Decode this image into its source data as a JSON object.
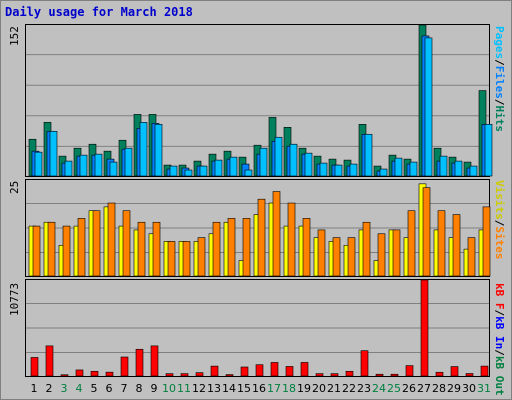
{
  "title": "Daily usage for March 2018",
  "colors": {
    "hits": "#00805c",
    "files": "#0080ff",
    "pages": "#00c0ff",
    "sites": "#ff8000",
    "visits": "#ffff00",
    "kbin": "#0000ff",
    "kbout": "#008040",
    "kbf": "#ff0000",
    "weekend": "#008040"
  },
  "legends": {
    "top": [
      {
        "text": "Pages",
        "color": "#00c0ff"
      },
      {
        "text": "/",
        "color": "#000000"
      },
      {
        "text": "Files",
        "color": "#0080ff"
      },
      {
        "text": "/",
        "color": "#000000"
      },
      {
        "text": "Hits",
        "color": "#00805c"
      }
    ],
    "middle": [
      {
        "text": "Visits",
        "color": "#cccc00"
      },
      {
        "text": "/",
        "color": "#000000"
      },
      {
        "text": "Sites",
        "color": "#ff8000"
      }
    ],
    "bottom": [
      {
        "text": "kB F",
        "color": "#ff0000"
      },
      {
        "text": "/",
        "color": "#000000"
      },
      {
        "text": "kB In",
        "color": "#0000ff"
      },
      {
        "text": "/",
        "color": "#000000"
      },
      {
        "text": "kB Out",
        "color": "#008040"
      }
    ]
  },
  "chart_data": {
    "type": "bar",
    "title": "Daily usage for March 2018",
    "categories": [
      "1",
      "2",
      "3",
      "4",
      "5",
      "6",
      "7",
      "8",
      "9",
      "10",
      "11",
      "12",
      "13",
      "14",
      "15",
      "16",
      "17",
      "18",
      "19",
      "20",
      "21",
      "22",
      "23",
      "24",
      "25",
      "26",
      "27",
      "28",
      "29",
      "30",
      "31"
    ],
    "weekend_days": [
      "3",
      "4",
      "10",
      "11",
      "17",
      "18",
      "24",
      "25",
      "31"
    ],
    "panels": [
      {
        "ymax_label": "152",
        "ymax": 152,
        "series": [
          {
            "name": "Hits",
            "values": [
              37,
              54,
              20,
              28,
              32,
              25,
              36,
              62,
              62,
              11,
              11,
              15,
              22,
              25,
              19,
              31,
              59,
              49,
              28,
              20,
              17,
              16,
              52,
              10,
              21,
              17,
              152,
              28,
              19,
              14,
              86
            ]
          },
          {
            "name": "Files",
            "values": [
              25,
              45,
              13,
              20,
              21,
              17,
              27,
              48,
              53,
              7,
              8,
              10,
              15,
              17,
              12,
              22,
              35,
              30,
              22,
              12,
              11,
              10,
              42,
              5,
              15,
              12,
              141,
              15,
              13,
              8,
              52
            ]
          },
          {
            "name": "Pages",
            "values": [
              24,
              45,
              15,
              21,
              22,
              14,
              28,
              54,
              52,
              10,
              6,
              10,
              16,
              19,
              6,
              28,
              39,
              32,
              23,
              13,
              11,
              12,
              42,
              7,
              18,
              14,
              139,
              20,
              15,
              10,
              52
            ]
          }
        ]
      },
      {
        "ymax_label": "25",
        "ymax": 25,
        "series": [
          {
            "name": "Visits",
            "values": [
              13,
              14,
              8,
              13,
              17,
              18,
              13,
              12,
              11,
              9,
              9,
              9,
              11,
              14,
              4,
              16,
              19,
              13,
              13,
              10,
              9,
              8,
              12,
              4,
              12,
              10,
              24,
              12,
              10,
              7,
              12
            ]
          },
          {
            "name": "Sites",
            "values": [
              13,
              14,
              13,
              15,
              17,
              19,
              17,
              14,
              14,
              9,
              9,
              10,
              14,
              15,
              15,
              20,
              22,
              19,
              15,
              12,
              10,
              10,
              14,
              11,
              12,
              17,
              23,
              17,
              16,
              10,
              18
            ]
          }
        ]
      },
      {
        "ymax_label": "10773",
        "ymax": 10773,
        "series": [
          {
            "name": "kB F",
            "values": [
              2080,
              3380,
              140,
              680,
              530,
              430,
              2130,
              3000,
              3380,
              270,
              270,
              380,
              1110,
              160,
              1010,
              1270,
              1520,
              1070,
              1520,
              270,
              270,
              530,
              2840,
              200,
              200,
              1170,
              10773,
              420,
              1060,
              280,
              1110
            ]
          }
        ]
      }
    ]
  }
}
